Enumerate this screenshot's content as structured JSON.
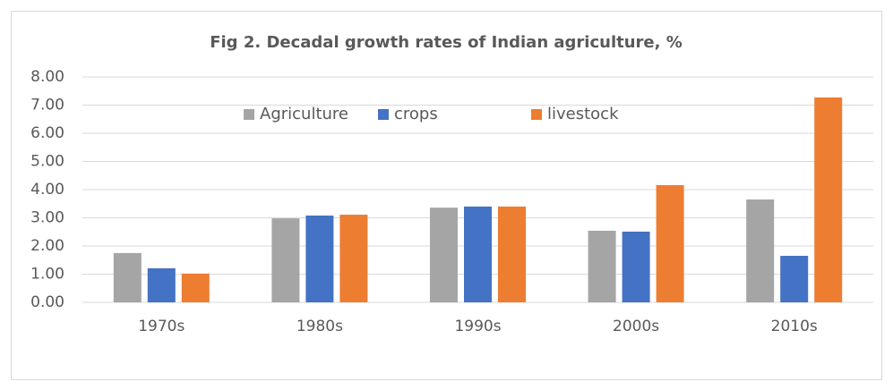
{
  "chart_data": {
    "type": "bar",
    "title": "Fig 2. Decadal growth rates of Indian agriculture, %",
    "categories": [
      "1970s",
      "1980s",
      "1990s",
      "2000s",
      "2010s"
    ],
    "series": [
      {
        "name": "Agriculture",
        "color": "#a5a5a5",
        "values": [
          1.75,
          2.98,
          3.36,
          2.54,
          3.65
        ]
      },
      {
        "name": "crops",
        "color": "#4472c4",
        "values": [
          1.21,
          3.08,
          3.4,
          2.51,
          1.65
        ]
      },
      {
        "name": "livestock",
        "color": "#ed7d31",
        "values": [
          1.02,
          3.11,
          3.4,
          4.16,
          7.27
        ]
      }
    ],
    "ylim": [
      0,
      8
    ],
    "yticks": [
      {
        "value": 0,
        "label": "0.00"
      },
      {
        "value": 1,
        "label": "1.00"
      },
      {
        "value": 2,
        "label": "2.00"
      },
      {
        "value": 3,
        "label": "3.00"
      },
      {
        "value": 4,
        "label": "4.00"
      },
      {
        "value": 5,
        "label": "5.00"
      },
      {
        "value": 6,
        "label": "6.00"
      },
      {
        "value": 7,
        "label": "7.00"
      },
      {
        "value": 8,
        "label": "8.00"
      }
    ],
    "grid": true,
    "legend": "top"
  }
}
